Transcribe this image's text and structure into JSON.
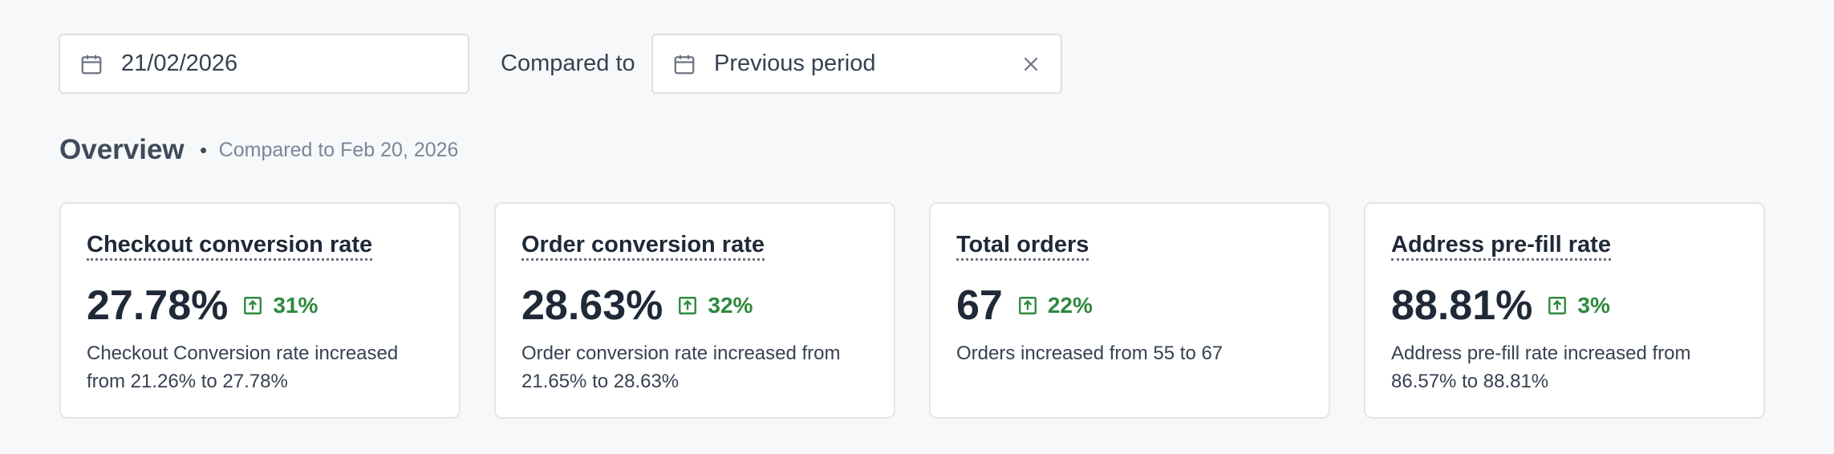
{
  "filters": {
    "date": "21/02/2026",
    "compare_label": "Compared to",
    "compare_value": "Previous period"
  },
  "overview": {
    "title": "Overview",
    "subtitle": "Compared to Feb 20, 2026"
  },
  "cards": [
    {
      "title": "Checkout conversion rate",
      "value": "27.78%",
      "change": "31%",
      "description": "Checkout Conversion rate increased from 21.26% to 27.78%"
    },
    {
      "title": "Order conversion rate",
      "value": "28.63%",
      "change": "32%",
      "description": "Order conversion rate increased from 21.65% to 28.63%"
    },
    {
      "title": "Total orders",
      "value": "67",
      "change": "22%",
      "description": "Orders increased from 55 to 67"
    },
    {
      "title": "Address pre-fill rate",
      "value": "88.81%",
      "change": "3%",
      "description": "Address pre-fill rate increased from 86.57% to 88.81%"
    }
  ]
}
